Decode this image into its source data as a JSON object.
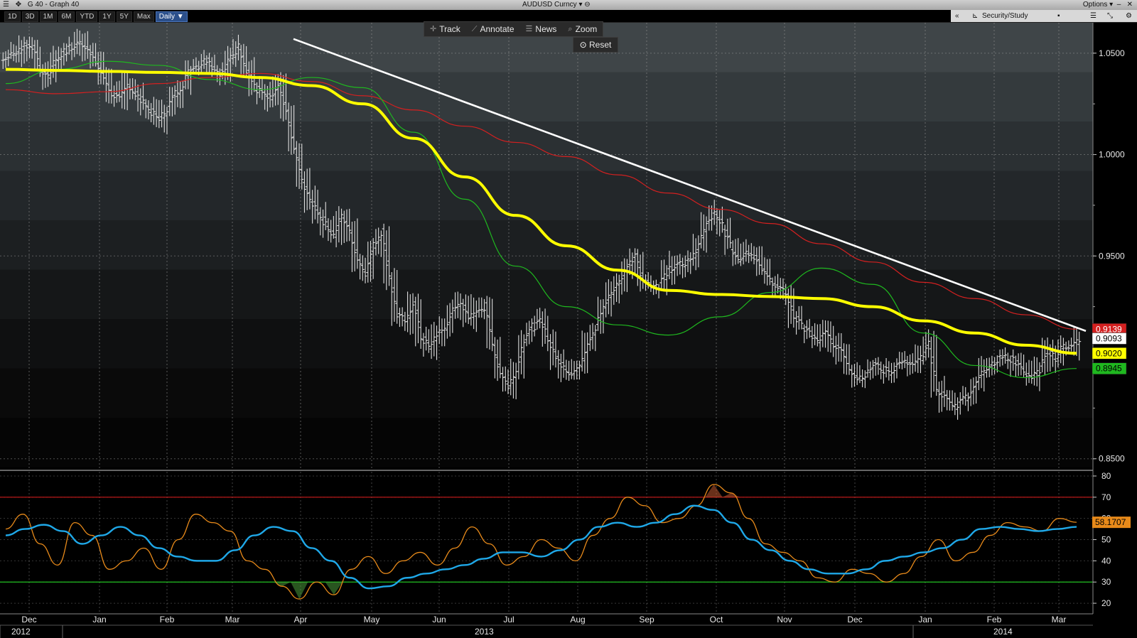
{
  "window": {
    "left_title": "G 40 - Graph 40",
    "center_title": "AUDUSD Curncy",
    "options_label": "Options"
  },
  "periods": [
    "1D",
    "3D",
    "1M",
    "6M",
    "YTD",
    "1Y",
    "5Y",
    "Max",
    "Daily ▼"
  ],
  "active_period": "Daily ▼",
  "right_toolbar": {
    "collapse": "«",
    "security_study": "Security/Study"
  },
  "chart_tools": {
    "track": "Track",
    "annotate": "Annotate",
    "news": "News",
    "zoom": "Zoom",
    "reset": "Reset"
  },
  "colors": {
    "price_bars": "#e0e0e0",
    "ma_yellow": "#ffff00",
    "ma_red": "#d42020",
    "ma_green": "#1fb81f",
    "trendline": "#ffffff",
    "rsi": "#e88a1a",
    "rsi_avg": "#1fa8e8",
    "overbought_line": "#cc1a1a",
    "oversold_line": "#20c020"
  },
  "chart_data": [
    {
      "type": "line",
      "title": "AUDUSD Curncy",
      "x_labels": [
        "Dec",
        "Jan",
        "Feb",
        "Mar",
        "Apr",
        "May",
        "Jun",
        "Jul",
        "Aug",
        "Sep",
        "Oct",
        "Nov",
        "Dec",
        "Jan",
        "Feb",
        "Mar"
      ],
      "year_labels": [
        "2012",
        "2013",
        "2014"
      ],
      "y_ticks": [
        "1.0500",
        "1.0000",
        "0.9500",
        "0.8500"
      ],
      "ylim": [
        0.845,
        1.065
      ],
      "series": [
        {
          "name": "AUDUSD",
          "style": "ohlc-bars",
          "values": [
            1.048,
            1.05,
            1.055,
            1.052,
            1.042,
            1.039,
            1.047,
            1.051,
            1.053,
            1.056,
            1.052,
            1.045,
            1.038,
            1.03,
            1.027,
            1.034,
            1.03,
            1.025,
            1.021,
            1.017,
            1.023,
            1.03,
            1.035,
            1.043,
            1.044,
            1.047,
            1.042,
            1.04,
            1.048,
            1.053,
            1.042,
            1.033,
            1.03,
            1.027,
            1.033,
            1.02,
            1.002,
            0.988,
            0.978,
            0.972,
            0.965,
            0.96,
            0.97,
            0.963,
            0.948,
            0.942,
            0.955,
            0.962,
            0.94,
            0.92,
            0.918,
            0.927,
            0.91,
            0.905,
            0.912,
            0.915,
            0.923,
            0.927,
            0.918,
            0.924,
            0.925,
            0.906,
            0.892,
            0.886,
            0.895,
            0.909,
            0.915,
            0.917,
            0.91,
            0.9,
            0.895,
            0.892,
            0.896,
            0.908,
            0.915,
            0.925,
            0.932,
            0.938,
            0.945,
            0.95,
            0.938,
            0.935,
            0.936,
            0.942,
            0.945,
            0.946,
            0.948,
            0.956,
            0.968,
            0.97,
            0.965,
            0.955,
            0.949,
            0.952,
            0.95,
            0.942,
            0.938,
            0.933,
            0.932,
            0.92,
            0.915,
            0.911,
            0.908,
            0.912,
            0.907,
            0.904,
            0.895,
            0.889,
            0.892,
            0.896,
            0.894,
            0.893,
            0.896,
            0.897,
            0.895,
            0.9,
            0.906,
            0.885,
            0.88,
            0.875,
            0.878,
            0.882,
            0.888,
            0.894,
            0.898,
            0.899,
            0.9,
            0.898,
            0.893,
            0.89,
            0.894,
            0.903,
            0.9,
            0.906,
            0.905,
            0.9093
          ]
        },
        {
          "name": "",
          "values": [
            1.042,
            1.0415,
            1.041,
            1.0405,
            1.04,
            1.038,
            1.034,
            1.025,
            1.008,
            0.989,
            0.97,
            0.955,
            0.943,
            0.933,
            0.931,
            0.93,
            0.929,
            0.925,
            0.918,
            0.912,
            0.906,
            0.902
          ]
        },
        {
          "name": "",
          "values": [
            1.032,
            1.03,
            1.031,
            1.035,
            1.038,
            1.04,
            1.036,
            1.029,
            1.022,
            1.014,
            1.006,
            0.999,
            0.99,
            0.981,
            0.973,
            0.966,
            0.956,
            0.947,
            0.937,
            0.929,
            0.921,
            0.9139
          ]
        },
        {
          "name": "",
          "values": [
            1.035,
            1.042,
            1.046,
            1.044,
            1.037,
            1.032,
            1.038,
            1.033,
            1.011,
            0.978,
            0.945,
            0.925,
            0.916,
            0.911,
            0.92,
            0.932,
            0.944,
            0.936,
            0.912,
            0.896,
            0.89,
            0.8945
          ]
        }
      ],
      "trendline": {
        "from": [
          "Apr",
          1.057
        ],
        "to": [
          "Mar",
          0.913
        ]
      },
      "price_tags": [
        {
          "value": "0.9139",
          "color": "#d42020",
          "text_color": "#ffffff"
        },
        {
          "value": "0.9093",
          "color": "#ffffff",
          "text_color": "#000000"
        },
        {
          "value": "0.9020",
          "color": "#ffff00",
          "text_color": "#000000"
        },
        {
          "value": "0.8945",
          "color": "#1fb81f",
          "text_color": "#000000"
        }
      ]
    },
    {
      "type": "line",
      "y_ticks": [
        "80",
        "70",
        "60",
        "50",
        "40",
        "30",
        "20"
      ],
      "ylim": [
        15,
        82
      ],
      "levels": [
        70,
        30
      ],
      "series": [
        {
          "name": "",
          "values": [
            55,
            62,
            48,
            38,
            58,
            52,
            36,
            40,
            46,
            36,
            50,
            62,
            58,
            54,
            40,
            36,
            28,
            22,
            30,
            24,
            36,
            42,
            34,
            40,
            44,
            38,
            46,
            56,
            48,
            38,
            42,
            50,
            46,
            40,
            52,
            60,
            70,
            66,
            58,
            60,
            66,
            76,
            72,
            60,
            48,
            44,
            40,
            32,
            30,
            36,
            34,
            30,
            34,
            42,
            50,
            40,
            44,
            52,
            58,
            56,
            54,
            60,
            58.1707
          ]
        },
        {
          "name": "",
          "values": [
            52,
            55,
            57,
            54,
            48,
            52,
            56,
            52,
            46,
            42,
            40,
            40,
            45,
            52,
            56,
            54,
            46,
            40,
            32,
            27,
            28,
            32,
            34,
            36,
            38,
            41,
            44,
            44,
            42,
            45,
            50,
            56,
            58,
            56,
            58,
            62,
            66,
            64,
            58,
            50,
            45,
            40,
            36,
            34,
            34,
            36,
            40,
            42,
            44,
            46,
            50,
            55,
            56,
            55,
            54,
            55,
            56
          ]
        }
      ],
      "value_tags": [
        {
          "value": "58.1707",
          "color": "#e88a1a"
        }
      ]
    }
  ]
}
